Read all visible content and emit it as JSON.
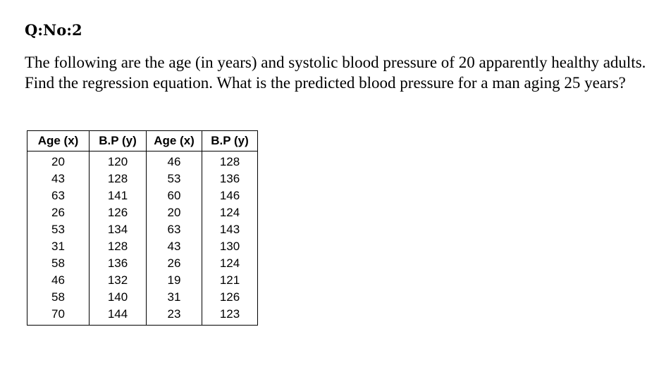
{
  "question_number": "Q:No:2",
  "question_text": "The following are the age (in years) and systolic blood pressure of 20 apparently healthy adults. Find the regression equation. What is the predicted blood pressure for a man aging 25 years?",
  "table": {
    "headers": [
      "Age (x)",
      "B.P (y)",
      "Age (x)",
      "B.P (y)"
    ],
    "rows": [
      [
        "20",
        "120",
        "46",
        "128"
      ],
      [
        "43",
        "128",
        "53",
        "136"
      ],
      [
        "63",
        "141",
        "60",
        "146"
      ],
      [
        "26",
        "126",
        "20",
        "124"
      ],
      [
        "53",
        "134",
        "63",
        "143"
      ],
      [
        "31",
        "128",
        "43",
        "130"
      ],
      [
        "58",
        "136",
        "26",
        "124"
      ],
      [
        "46",
        "132",
        "19",
        "121"
      ],
      [
        "58",
        "140",
        "31",
        "126"
      ],
      [
        "70",
        "144",
        "23",
        "123"
      ]
    ]
  }
}
